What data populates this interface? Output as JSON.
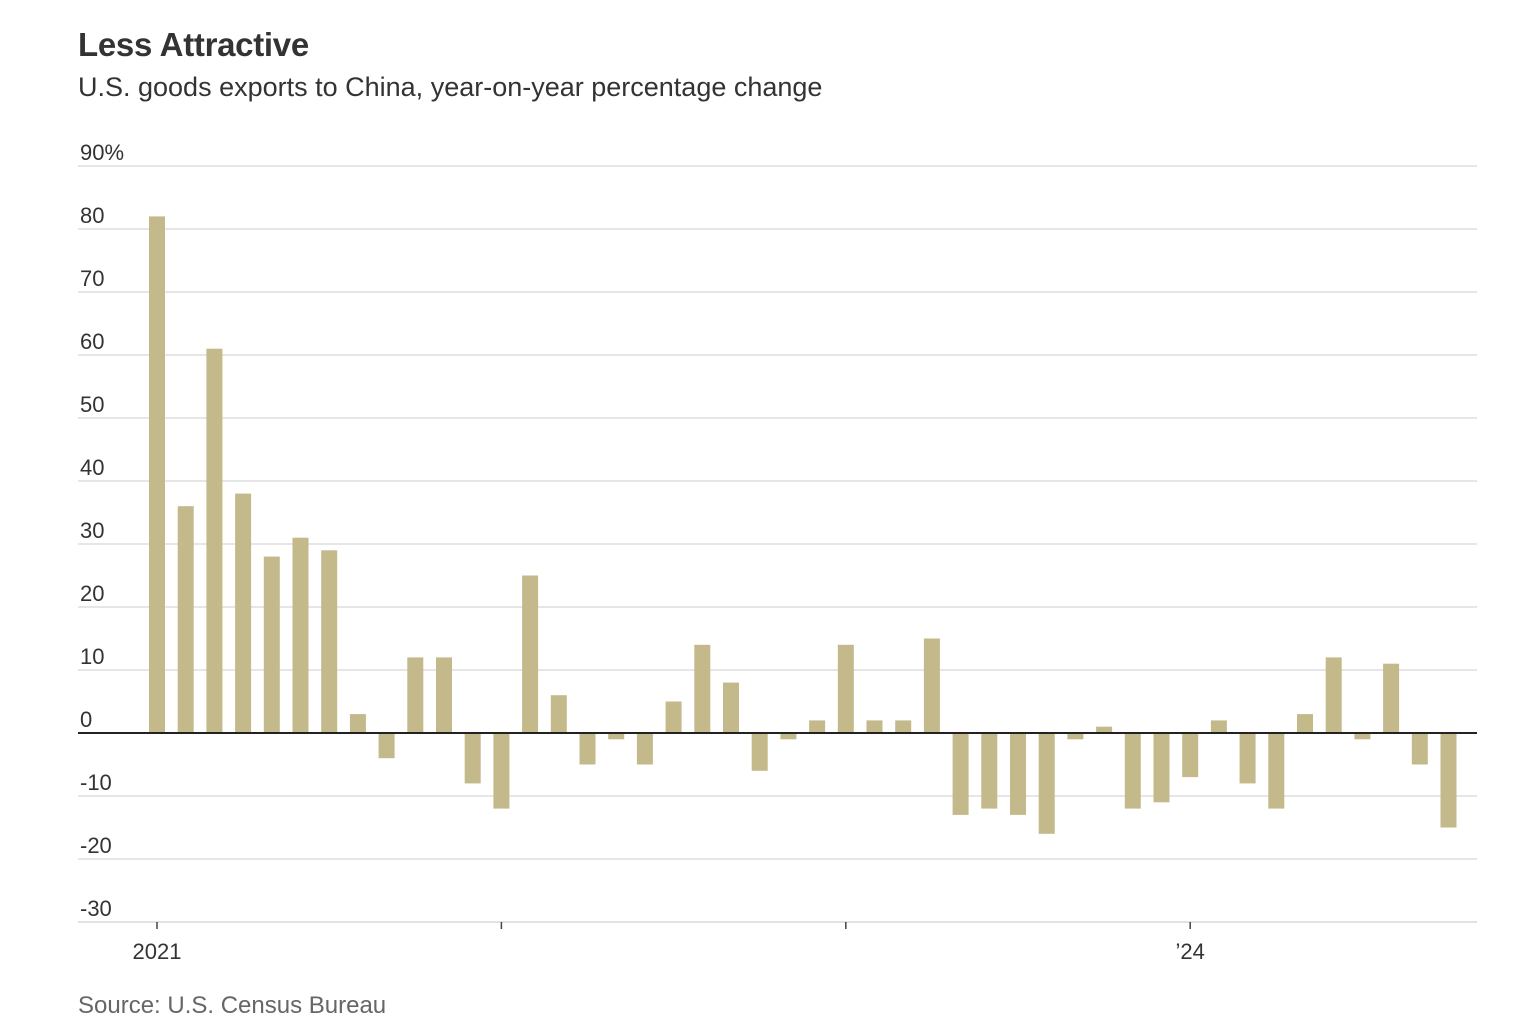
{
  "title": "Less Attractive",
  "subtitle": "U.S. goods exports to China, year-on-year percentage change",
  "source": "Source: U.S. Census Bureau",
  "colors": {
    "bar": "#c3b98a",
    "grid": "#dddddd",
    "zero_line": "#222222",
    "text": "#333333",
    "source_text": "#666666"
  },
  "chart_data": {
    "type": "bar",
    "title": "Less Attractive",
    "subtitle": "U.S. goods exports to China, year-on-year percentage change",
    "ylim": [
      -30,
      90
    ],
    "y_ticks": [
      90,
      80,
      70,
      60,
      50,
      40,
      30,
      20,
      10,
      0,
      -10,
      -20,
      -30
    ],
    "y_tick_labels": [
      "90%",
      "80",
      "70",
      "60",
      "50",
      "40",
      "30",
      "20",
      "10",
      "0",
      "-10",
      "-20",
      "-30"
    ],
    "x_tick_labels": [
      {
        "label": "2021",
        "index": 0
      },
      {
        "label": "",
        "index": 12
      },
      {
        "label": "",
        "index": 24
      },
      {
        "label": "’24",
        "index": 36
      }
    ],
    "x_start": "2021-01",
    "x_frequency": "monthly",
    "values": [
      82,
      36,
      61,
      38,
      28,
      31,
      29,
      3,
      -4,
      12,
      12,
      -8,
      -12,
      25,
      6,
      -5,
      -1,
      -5,
      5,
      14,
      8,
      -6,
      -1,
      2,
      14,
      2,
      2,
      15,
      -13,
      -12,
      -13,
      -16,
      -1,
      1,
      -12,
      -11,
      -7,
      2,
      -8,
      -12,
      3,
      12,
      -1,
      11,
      -5,
      -15
    ],
    "grid": true,
    "legend": "none"
  }
}
